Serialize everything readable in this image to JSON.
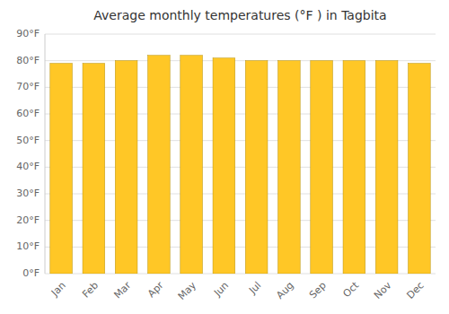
{
  "chart_data": {
    "type": "bar",
    "title": "Average monthly temperatures (°F ) in Tagbita",
    "categories": [
      "Jan",
      "Feb",
      "Mar",
      "Apr",
      "May",
      "Jun",
      "Jul",
      "Aug",
      "Sep",
      "Oct",
      "Nov",
      "Dec"
    ],
    "values": [
      79,
      79,
      80,
      82,
      82,
      81,
      80,
      80,
      80,
      80,
      80,
      79
    ],
    "color": "#FFC726",
    "ylim": [
      0,
      90
    ],
    "yticks": [
      {
        "value": 0,
        "label": "0°F"
      },
      {
        "value": 10,
        "label": "10°F"
      },
      {
        "value": 20,
        "label": "20°F"
      },
      {
        "value": 30,
        "label": "30°F"
      },
      {
        "value": 40,
        "label": "40°F"
      },
      {
        "value": 50,
        "label": "50°F"
      },
      {
        "value": 60,
        "label": "60°F"
      },
      {
        "value": 70,
        "label": "70°F"
      },
      {
        "value": 80,
        "label": "80°F"
      },
      {
        "value": 90,
        "label": "90°F"
      }
    ],
    "grid": true
  }
}
